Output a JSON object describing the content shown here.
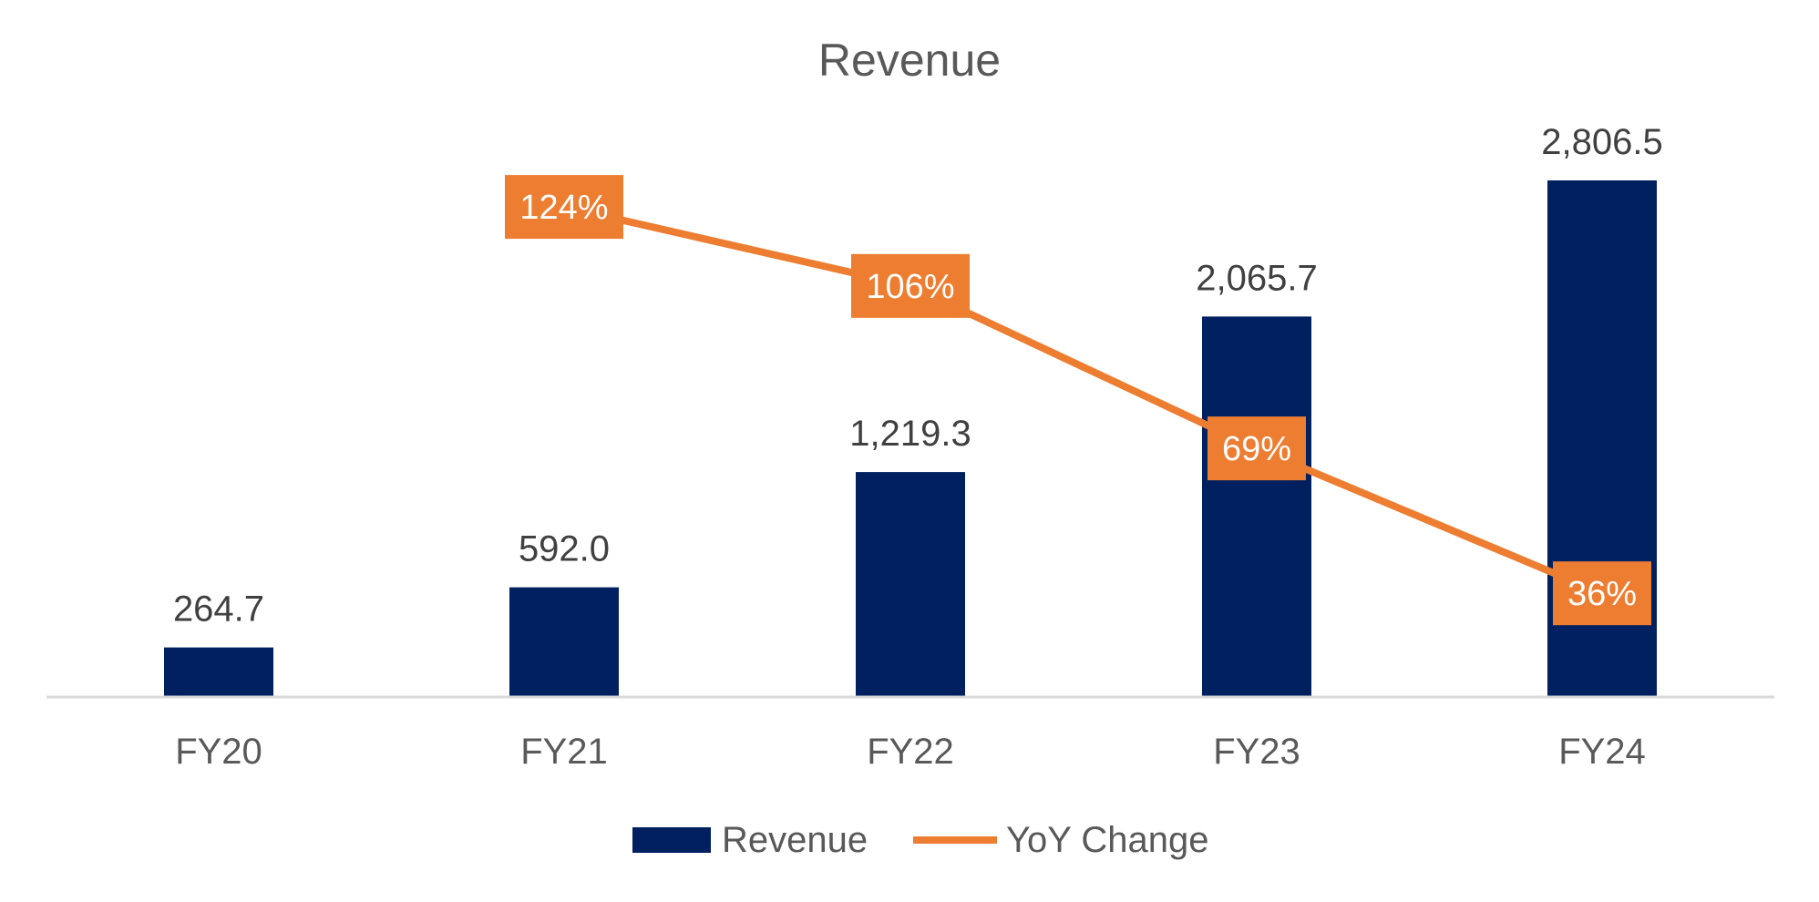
{
  "chart_data": {
    "type": "bar",
    "title": "Revenue",
    "categories": [
      "FY20",
      "FY21",
      "FY22",
      "FY23",
      "FY24"
    ],
    "series": [
      {
        "name": "Revenue",
        "kind": "bar",
        "color": "#002060",
        "values": [
          264.7,
          592.0,
          1219.3,
          2065.7,
          2806.5
        ],
        "labels": [
          "264.7",
          "592.0",
          "1,219.3",
          "2,065.7",
          "2,806.5"
        ]
      },
      {
        "name": "YoY Change",
        "kind": "line",
        "axis": "secondary",
        "color": "#ED7D31",
        "values": [
          null,
          124,
          106,
          69,
          36
        ],
        "labels": [
          "",
          "124%",
          "106%",
          "69%",
          "36%"
        ]
      }
    ],
    "ylim": [
      0,
      2806.5
    ],
    "y2lim": [
      0,
      140
    ],
    "xlabel": "",
    "ylabel": "",
    "grid": false,
    "legend": "bottom"
  }
}
